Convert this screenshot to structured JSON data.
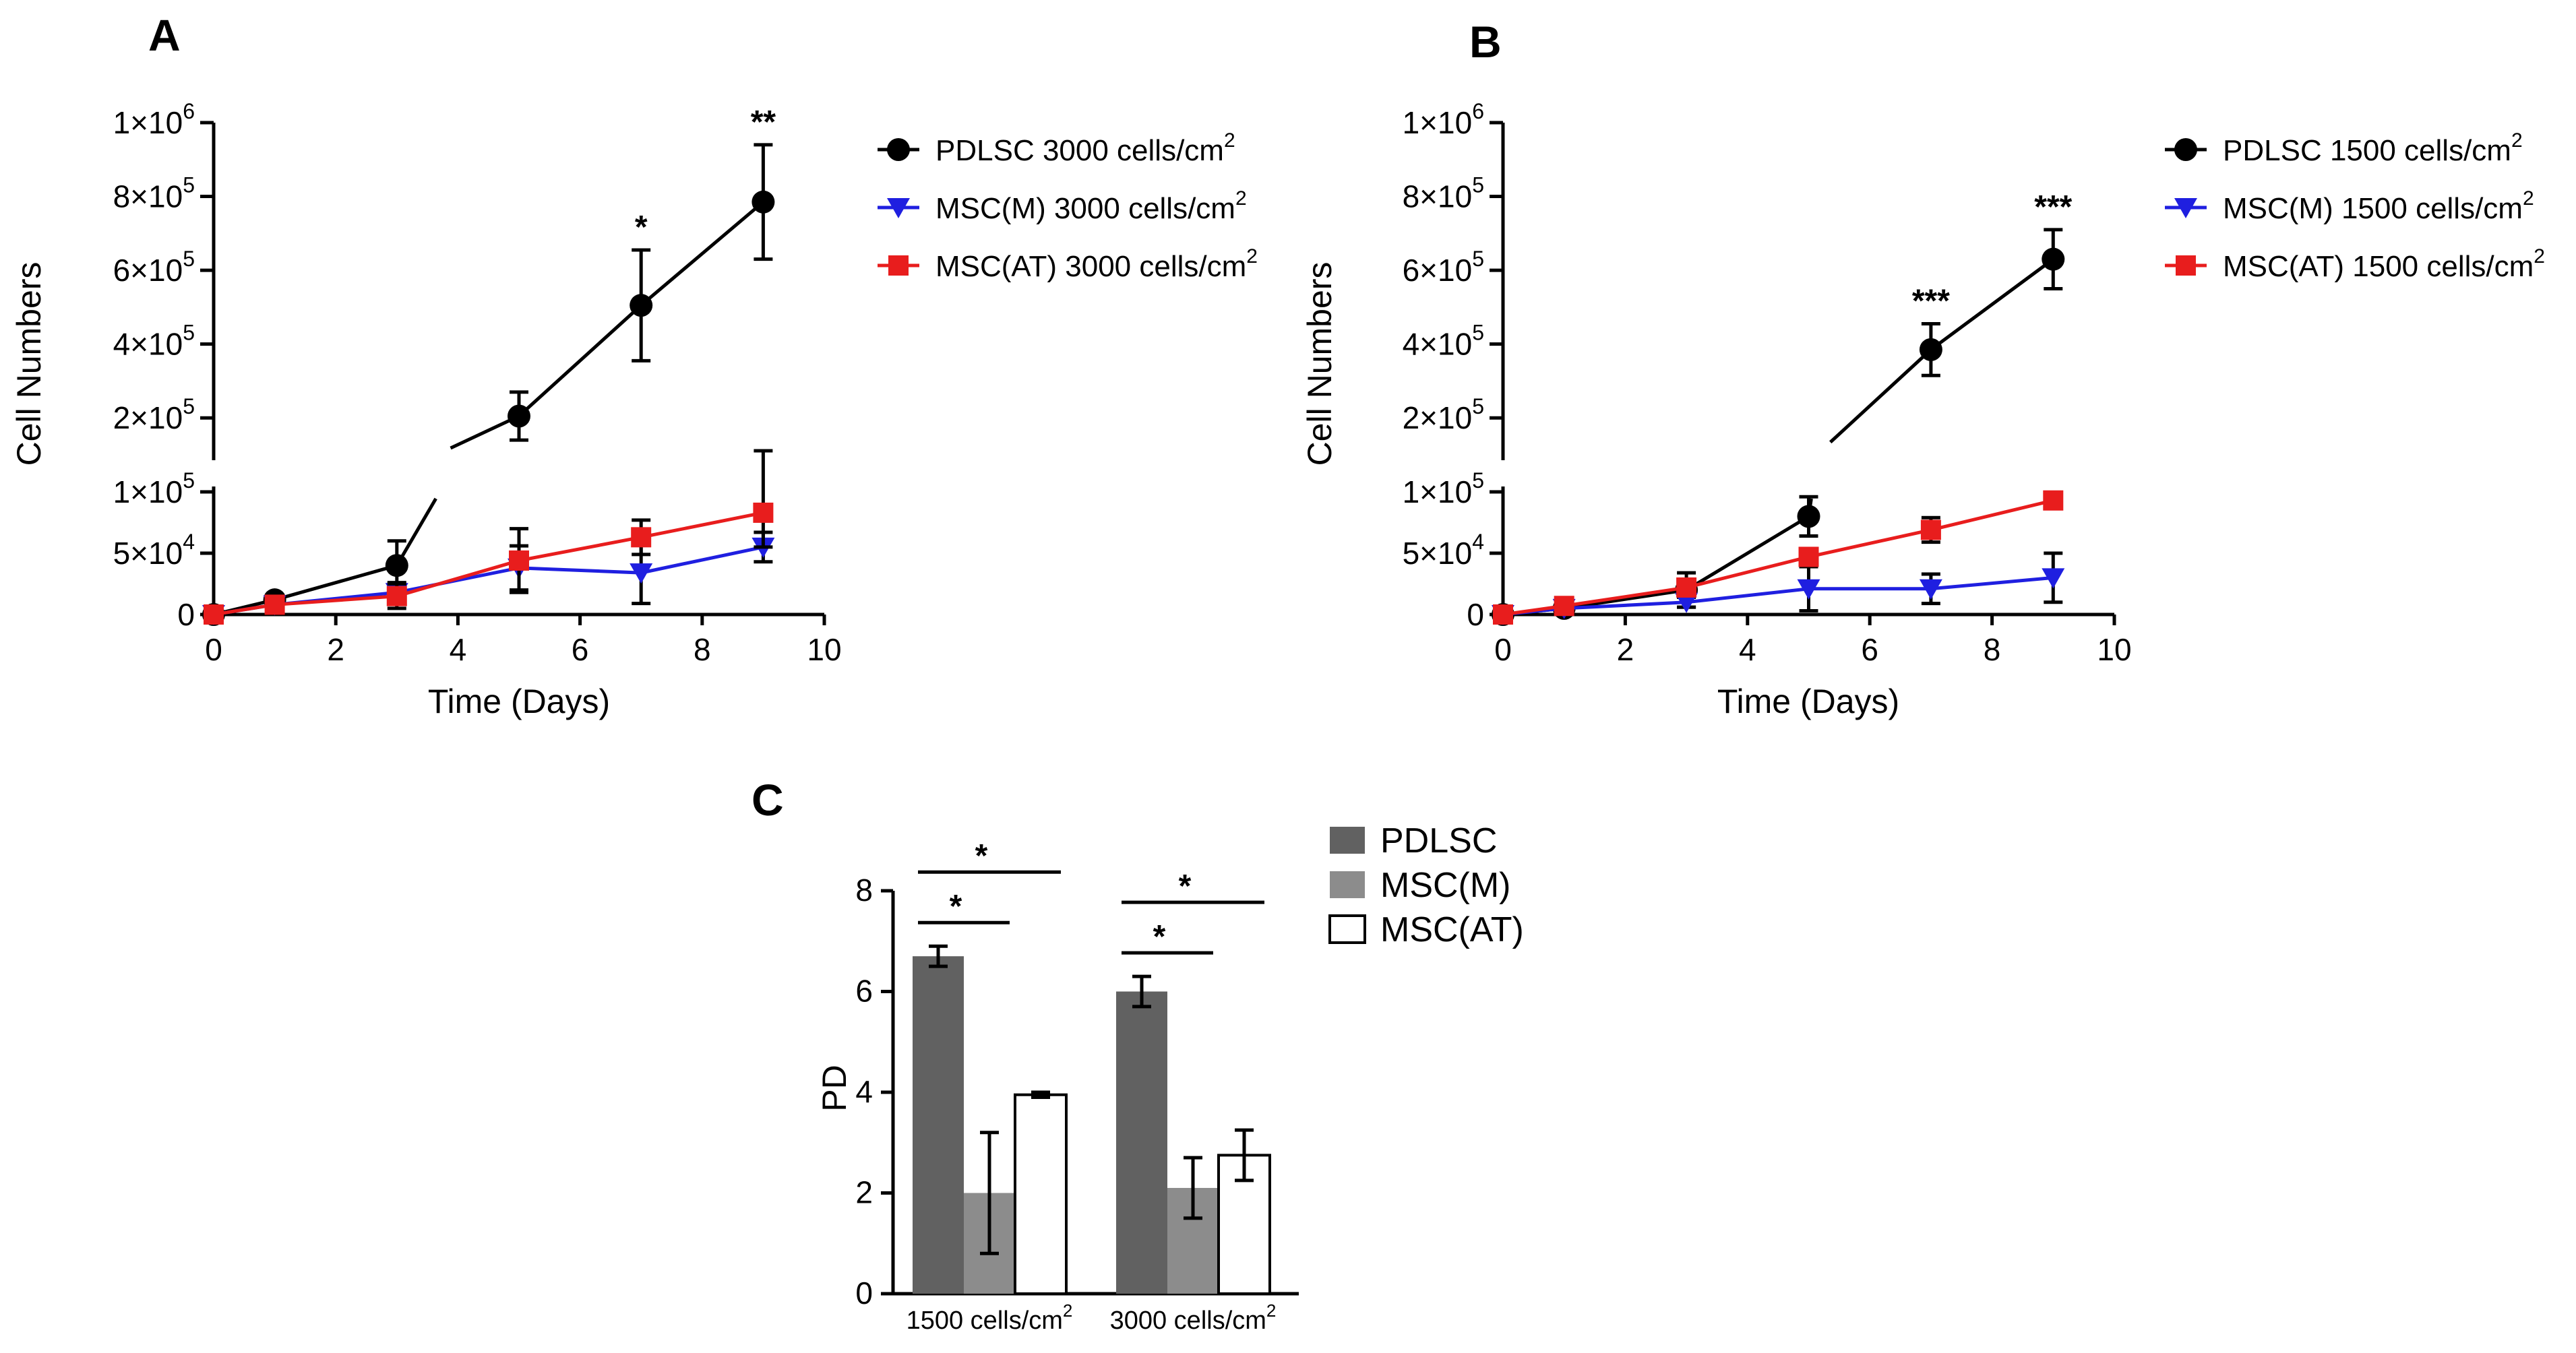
{
  "chart_data": [
    {
      "panel": "A",
      "type": "line",
      "xlabel": "Time (Days)",
      "ylabel": "Cell Numbers",
      "xlim": [
        0,
        10
      ],
      "x_ticks": [
        0,
        2,
        4,
        6,
        8,
        10
      ],
      "axis_break": true,
      "y_ticks": [
        {
          "value": 0,
          "text": "0",
          "base": "",
          "exp": ""
        },
        {
          "value": 50000,
          "text": "5×10",
          "base": "5×10",
          "exp": "4"
        },
        {
          "value": 100000,
          "text": "1×10",
          "base": "1×10",
          "exp": "5"
        },
        {
          "value": 200000,
          "text": "2×10",
          "base": "2×10",
          "exp": "5"
        },
        {
          "value": 400000,
          "text": "4×10",
          "base": "4×10",
          "exp": "5"
        },
        {
          "value": 600000,
          "text": "6×10",
          "base": "6×10",
          "exp": "5"
        },
        {
          "value": 800000,
          "text": "8×10",
          "base": "8×10",
          "exp": "5"
        },
        {
          "value": 1000000,
          "text": "1×10",
          "base": "1×10",
          "exp": "6"
        }
      ],
      "series": [
        {
          "name": "PDLSC 3000 cells/cm",
          "sup": "2",
          "color": "#000000",
          "marker": "circle",
          "x": [
            0,
            1,
            3,
            5,
            7,
            9
          ],
          "y": [
            0,
            12000,
            40000,
            205000,
            505000,
            785000
          ],
          "err": [
            0,
            4000,
            20000,
            65000,
            150000,
            155000
          ]
        },
        {
          "name": "MSC(M) 3000 cells/cm",
          "sup": "2",
          "color": "#1f1fe0",
          "marker": "triangle-down",
          "x": [
            0,
            1,
            3,
            5,
            7,
            9
          ],
          "y": [
            0,
            8000,
            18000,
            38000,
            34000,
            55000
          ],
          "err": [
            0,
            3000,
            8000,
            18000,
            25000,
            12000
          ]
        },
        {
          "name": "MSC(AT) 3000 cells/cm",
          "sup": "2",
          "color": "#e81d1d",
          "marker": "square",
          "x": [
            0,
            1,
            3,
            5,
            7,
            9
          ],
          "y": [
            0,
            8000,
            15000,
            44000,
            63000,
            83000
          ],
          "err": [
            0,
            3000,
            10000,
            26000,
            14000,
            28000
          ]
        }
      ],
      "annotations": [
        {
          "x": 7,
          "text": "*"
        },
        {
          "x": 9,
          "text": "**"
        }
      ]
    },
    {
      "panel": "B",
      "type": "line",
      "xlabel": "Time (Days)",
      "ylabel": "Cell Numbers",
      "xlim": [
        0,
        10
      ],
      "x_ticks": [
        0,
        2,
        4,
        6,
        8,
        10
      ],
      "axis_break": true,
      "y_ticks": [
        {
          "value": 0,
          "text": "0",
          "base": "",
          "exp": ""
        },
        {
          "value": 50000,
          "text": "5×10",
          "base": "5×10",
          "exp": "4"
        },
        {
          "value": 100000,
          "text": "1×10",
          "base": "1×10",
          "exp": "5"
        },
        {
          "value": 200000,
          "text": "2×10",
          "base": "2×10",
          "exp": "5"
        },
        {
          "value": 400000,
          "text": "4×10",
          "base": "4×10",
          "exp": "5"
        },
        {
          "value": 600000,
          "text": "6×10",
          "base": "6×10",
          "exp": "5"
        },
        {
          "value": 800000,
          "text": "8×10",
          "base": "8×10",
          "exp": "5"
        },
        {
          "value": 1000000,
          "text": "1×10",
          "base": "1×10",
          "exp": "6"
        }
      ],
      "series": [
        {
          "name": "PDLSC 1500 cells/cm",
          "sup": "2",
          "color": "#000000",
          "marker": "circle",
          "x": [
            0,
            1,
            3,
            5,
            7,
            9
          ],
          "y": [
            0,
            5000,
            20000,
            80000,
            385000,
            630000
          ],
          "err": [
            0,
            2000,
            14000,
            16000,
            70000,
            80000
          ]
        },
        {
          "name": "MSC(M) 1500 cells/cm",
          "sup": "2",
          "color": "#1f1fe0",
          "marker": "triangle-down",
          "x": [
            0,
            1,
            3,
            5,
            7,
            9
          ],
          "y": [
            0,
            5000,
            10000,
            21000,
            21000,
            30000
          ],
          "err": [
            0,
            2000,
            4000,
            18000,
            12000,
            20000
          ]
        },
        {
          "name": "MSC(AT) 1500 cells/cm",
          "sup": "2",
          "color": "#e81d1d",
          "marker": "square",
          "x": [
            0,
            1,
            3,
            5,
            7,
            9
          ],
          "y": [
            0,
            7000,
            22000,
            47000,
            69000,
            93000
          ],
          "err": [
            0,
            2000,
            6000,
            5000,
            10000,
            4000
          ]
        }
      ],
      "annotations": [
        {
          "x": 7,
          "text": "***"
        },
        {
          "x": 9,
          "text": "***"
        }
      ]
    },
    {
      "panel": "C",
      "type": "bar",
      "ylabel": "PD",
      "ylim": [
        0,
        8
      ],
      "y_ticks": [
        0,
        2,
        4,
        6,
        8
      ],
      "categories": [
        {
          "text": "1500 cells/cm",
          "sup": "2"
        },
        {
          "text": "3000 cells/cm",
          "sup": "2"
        }
      ],
      "series": [
        {
          "name": "PDLSC",
          "color": "#616161",
          "values": [
            6.7,
            6.0
          ],
          "err": [
            0.2,
            0.3
          ]
        },
        {
          "name": "MSC(M)",
          "color": "#8c8c8c",
          "values": [
            2.0,
            2.1
          ],
          "err": [
            1.2,
            0.6
          ]
        },
        {
          "name": "MSC(AT)",
          "color": "#ffffff",
          "values": [
            3.95,
            2.75
          ],
          "err": [
            0.05,
            0.5
          ]
        }
      ],
      "significance": [
        {
          "category": 0,
          "from": 0,
          "to": 1,
          "text": "*"
        },
        {
          "category": 0,
          "from": 0,
          "to": 2,
          "text": "*"
        },
        {
          "category": 1,
          "from": 0,
          "to": 1,
          "text": "*"
        },
        {
          "category": 1,
          "from": 0,
          "to": 2,
          "text": "*"
        }
      ]
    }
  ]
}
